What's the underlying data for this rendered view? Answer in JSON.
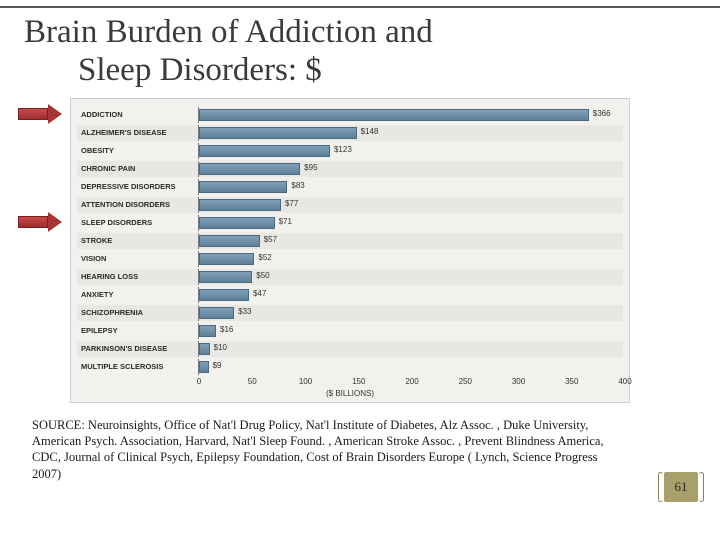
{
  "title_line1": "Brain Burden of Addiction and",
  "title_line2": "Sleep Disorders:  $",
  "chart": {
    "type": "bar-horizontal",
    "xlabel": "($ BILLIONS)",
    "xmin": 0,
    "xmax": 400,
    "xtick_step": 50,
    "xticks": [
      "0",
      "50",
      "100",
      "150",
      "200",
      "250",
      "300",
      "350",
      "400"
    ],
    "bar_fill_top": "#7fa0b8",
    "bar_fill_bottom": "#5d8099",
    "bar_border": "#4a6a82",
    "panel_bg": "#f2f1ed",
    "panel_border": "#cfcfcf",
    "label_fontsize": 7.5,
    "value_fontsize": 8,
    "items": [
      {
        "label": "ADDICTION",
        "value": 366,
        "display": "$366"
      },
      {
        "label": "ALZHEIMER'S DISEASE",
        "value": 148,
        "display": "$148"
      },
      {
        "label": "OBESITY",
        "value": 123,
        "display": "$123"
      },
      {
        "label": "CHRONIC PAIN",
        "value": 95,
        "display": "$95"
      },
      {
        "label": "DEPRESSIVE DISORDERS",
        "value": 83,
        "display": "$83"
      },
      {
        "label": "ATTENTION DISORDERS",
        "value": 77,
        "display": "$77"
      },
      {
        "label": "SLEEP DISORDERS",
        "value": 71,
        "display": "$71"
      },
      {
        "label": "STROKE",
        "value": 57,
        "display": "$57"
      },
      {
        "label": "VISION",
        "value": 52,
        "display": "$52"
      },
      {
        "label": "HEARING LOSS",
        "value": 50,
        "display": "$50"
      },
      {
        "label": "ANXIETY",
        "value": 47,
        "display": "$47"
      },
      {
        "label": "SCHIZOPHRENIA",
        "value": 33,
        "display": "$33"
      },
      {
        "label": "EPILEPSY",
        "value": 16,
        "display": "$16"
      },
      {
        "label": "PARKINSON'S DISEASE",
        "value": 10,
        "display": "$10"
      },
      {
        "label": "MULTIPLE SCLEROSIS",
        "value": 9,
        "display": "$9"
      }
    ],
    "highlight_indices": [
      0,
      6
    ]
  },
  "highlight_arrow": {
    "fill_top": "#c94a4a",
    "fill_bottom": "#9e2e2e",
    "border": "#7a1f1f"
  },
  "source_text": "SOURCE: Neuroinsights, Office of Nat'l Drug Policy, Nat'l Institute of Diabetes, Alz Assoc. , Duke University, American Psych. Association, Harvard, Nat'l Sleep Found. , American Stroke Assoc. , Prevent Blindness America, CDC, Journal of Clinical Psych, Epilepsy Foundation, Cost of Brain Disorders Europe ( Lynch, Science Progress 2007)",
  "page_number": "61",
  "page_badge_bg": "#a89f6b"
}
